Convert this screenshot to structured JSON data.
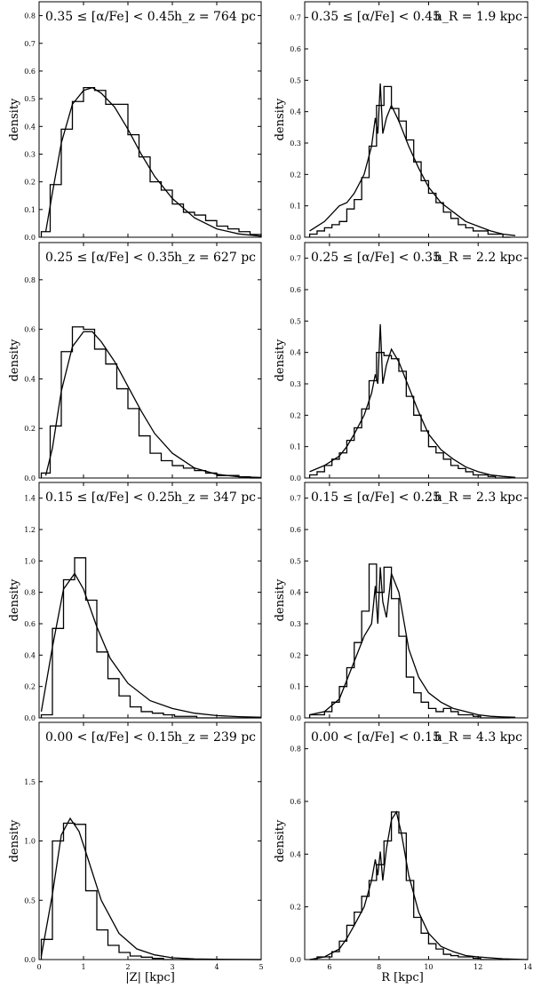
{
  "chart_data": [
    {
      "type": "histogram",
      "column": "left",
      "row": 0,
      "annotation_left": "0.35 ≤ [α/Fe] < 0.45",
      "annotation_right": "h_z = 764 pc",
      "ylabel": "density",
      "xlim": [
        0,
        5
      ],
      "ylim": [
        0,
        0.85
      ],
      "xticks": [
        0,
        1,
        2,
        3,
        4,
        5
      ],
      "yticks": [
        0.0,
        0.1,
        0.2,
        0.3,
        0.4,
        0.5,
        0.6,
        0.7,
        0.8
      ],
      "bin_edges": [
        0.05,
        0.25,
        0.5,
        0.75,
        1.0,
        1.25,
        1.5,
        1.75,
        2.0,
        2.25,
        2.5,
        2.75,
        3.0,
        3.25,
        3.5,
        3.75,
        4.0,
        4.25,
        4.5,
        4.75,
        5.0
      ],
      "hist_values": [
        0.02,
        0.19,
        0.39,
        0.49,
        0.54,
        0.53,
        0.48,
        0.48,
        0.37,
        0.29,
        0.2,
        0.17,
        0.12,
        0.09,
        0.08,
        0.06,
        0.04,
        0.03,
        0.02,
        0.01
      ],
      "fit_x": [
        0.15,
        0.3,
        0.5,
        0.75,
        1.0,
        1.2,
        1.4,
        1.7,
        2.0,
        2.3,
        2.6,
        3.0,
        3.5,
        4.0,
        4.5,
        5.0
      ],
      "fit_y": [
        0.02,
        0.16,
        0.34,
        0.48,
        0.53,
        0.54,
        0.52,
        0.47,
        0.39,
        0.3,
        0.22,
        0.14,
        0.07,
        0.03,
        0.012,
        0.004
      ]
    },
    {
      "type": "histogram",
      "column": "right",
      "row": 0,
      "annotation_left": "0.35 ≤ [α/Fe] < 0.45",
      "annotation_right": "h_R = 1.9 kpc",
      "ylabel": "density",
      "xlim": [
        5,
        14
      ],
      "ylim": [
        0,
        0.75
      ],
      "xticks": [
        6,
        8,
        10,
        12,
        14
      ],
      "yticks": [
        0.0,
        0.1,
        0.2,
        0.3,
        0.4,
        0.5,
        0.6,
        0.7
      ],
      "bin_edges": [
        5.2,
        5.5,
        5.8,
        6.1,
        6.4,
        6.7,
        7.0,
        7.3,
        7.6,
        7.9,
        8.2,
        8.5,
        8.8,
        9.1,
        9.4,
        9.7,
        10.0,
        10.3,
        10.6,
        10.9,
        11.2,
        11.5,
        11.8,
        12.1,
        12.4,
        12.7,
        13.0,
        13.3
      ],
      "hist_values": [
        0.01,
        0.02,
        0.03,
        0.04,
        0.05,
        0.09,
        0.12,
        0.19,
        0.29,
        0.42,
        0.48,
        0.41,
        0.37,
        0.31,
        0.24,
        0.18,
        0.14,
        0.11,
        0.08,
        0.06,
        0.04,
        0.03,
        0.02,
        0.02,
        0.01,
        0.01,
        0.0
      ],
      "fit_x": [
        5.2,
        5.8,
        6.4,
        6.7,
        7.0,
        7.4,
        7.7,
        7.85,
        7.95,
        8.05,
        8.15,
        8.3,
        8.5,
        8.8,
        9.2,
        9.6,
        10.0,
        10.5,
        11.0,
        11.5,
        12.0,
        12.5,
        13.0,
        13.5
      ],
      "fit_y": [
        0.02,
        0.05,
        0.1,
        0.11,
        0.14,
        0.2,
        0.29,
        0.38,
        0.33,
        0.49,
        0.33,
        0.38,
        0.42,
        0.37,
        0.29,
        0.22,
        0.16,
        0.11,
        0.08,
        0.05,
        0.035,
        0.02,
        0.01,
        0.005
      ]
    },
    {
      "type": "histogram",
      "column": "left",
      "row": 1,
      "annotation_left": "0.25 ≤ [α/Fe] < 0.35",
      "annotation_right": "h_z = 627 pc",
      "ylabel": "density",
      "xlim": [
        0,
        5
      ],
      "ylim": [
        0,
        0.95
      ],
      "xticks": [
        0,
        1,
        2,
        3,
        4,
        5
      ],
      "yticks": [
        0.0,
        0.2,
        0.4,
        0.6,
        0.8
      ],
      "bin_edges": [
        0.05,
        0.25,
        0.5,
        0.75,
        1.0,
        1.25,
        1.5,
        1.75,
        2.0,
        2.25,
        2.5,
        2.75,
        3.0,
        3.25,
        3.5,
        3.75,
        4.0,
        4.25,
        4.5,
        4.75,
        5.0
      ],
      "hist_values": [
        0.02,
        0.21,
        0.51,
        0.61,
        0.6,
        0.52,
        0.46,
        0.36,
        0.28,
        0.17,
        0.1,
        0.07,
        0.05,
        0.04,
        0.03,
        0.02,
        0.01,
        0.01,
        0.005,
        0.0
      ],
      "fit_x": [
        0.15,
        0.3,
        0.5,
        0.75,
        1.0,
        1.2,
        1.4,
        1.7,
        2.0,
        2.3,
        2.6,
        3.0,
        3.5,
        4.0,
        4.5,
        5.0
      ],
      "fit_y": [
        0.01,
        0.12,
        0.35,
        0.53,
        0.59,
        0.59,
        0.55,
        0.47,
        0.37,
        0.27,
        0.18,
        0.1,
        0.04,
        0.015,
        0.005,
        0.002
      ]
    },
    {
      "type": "histogram",
      "column": "right",
      "row": 1,
      "annotation_left": "0.25 ≤ [α/Fe] < 0.35",
      "annotation_right": "h_R = 2.2 kpc",
      "ylabel": "density",
      "xlim": [
        5,
        14
      ],
      "ylim": [
        0,
        0.75
      ],
      "xticks": [
        6,
        8,
        10,
        12,
        14
      ],
      "yticks": [
        0.0,
        0.1,
        0.2,
        0.3,
        0.4,
        0.5,
        0.6,
        0.7
      ],
      "bin_edges": [
        5.2,
        5.5,
        5.8,
        6.1,
        6.4,
        6.7,
        7.0,
        7.3,
        7.6,
        7.9,
        8.2,
        8.5,
        8.8,
        9.1,
        9.4,
        9.7,
        10.0,
        10.3,
        10.6,
        10.9,
        11.2,
        11.5,
        11.8,
        12.1,
        12.4,
        12.7,
        13.0,
        13.3
      ],
      "hist_values": [
        0.01,
        0.02,
        0.04,
        0.06,
        0.08,
        0.12,
        0.16,
        0.22,
        0.31,
        0.4,
        0.39,
        0.38,
        0.34,
        0.26,
        0.2,
        0.15,
        0.1,
        0.08,
        0.06,
        0.04,
        0.03,
        0.02,
        0.01,
        0.01,
        0.005,
        0.0,
        0.0
      ],
      "fit_x": [
        5.2,
        5.8,
        6.4,
        6.7,
        7.0,
        7.4,
        7.7,
        7.85,
        7.95,
        8.05,
        8.15,
        8.3,
        8.5,
        8.8,
        9.2,
        9.6,
        10.0,
        10.5,
        11.0,
        11.5,
        12.0,
        12.5,
        13.0,
        13.5
      ],
      "fit_y": [
        0.02,
        0.04,
        0.07,
        0.1,
        0.14,
        0.2,
        0.27,
        0.33,
        0.3,
        0.49,
        0.3,
        0.36,
        0.41,
        0.37,
        0.29,
        0.21,
        0.14,
        0.09,
        0.06,
        0.035,
        0.02,
        0.01,
        0.005,
        0.002
      ]
    },
    {
      "type": "histogram",
      "column": "left",
      "row": 2,
      "annotation_left": "0.15 ≤ [α/Fe] < 0.25",
      "annotation_right": "h_z = 347 pc",
      "ylabel": "density",
      "xlim": [
        0,
        5
      ],
      "ylim": [
        0,
        1.5
      ],
      "xticks": [
        0,
        1,
        2,
        3,
        4,
        5
      ],
      "yticks": [
        0.0,
        0.2,
        0.4,
        0.6,
        0.8,
        1.0,
        1.2,
        1.4
      ],
      "bin_edges": [
        0.05,
        0.3,
        0.55,
        0.8,
        1.05,
        1.3,
        1.55,
        1.8,
        2.05,
        2.3,
        2.55,
        2.8,
        3.05,
        3.3,
        3.55,
        3.8,
        4.05,
        4.3,
        4.55,
        4.8,
        5.0
      ],
      "hist_values": [
        0.02,
        0.57,
        0.88,
        1.02,
        0.75,
        0.42,
        0.25,
        0.14,
        0.07,
        0.04,
        0.03,
        0.02,
        0.01,
        0.01,
        0.0,
        0.0,
        0.0,
        0.0,
        0.0,
        0.0
      ],
      "fit_x": [
        0.05,
        0.3,
        0.55,
        0.8,
        1.0,
        1.3,
        1.6,
        2.0,
        2.5,
        3.0,
        3.5,
        4.0,
        4.5,
        5.0
      ],
      "fit_y": [
        0.04,
        0.45,
        0.82,
        0.92,
        0.82,
        0.58,
        0.38,
        0.22,
        0.11,
        0.06,
        0.03,
        0.015,
        0.008,
        0.004
      ]
    },
    {
      "type": "histogram",
      "column": "right",
      "row": 2,
      "annotation_left": "0.15 ≤ [α/Fe] < 0.25",
      "annotation_right": "h_R = 2.3 kpc",
      "ylabel": "density",
      "xlim": [
        5,
        14
      ],
      "ylim": [
        0,
        0.75
      ],
      "xticks": [
        6,
        8,
        10,
        12,
        14
      ],
      "yticks": [
        0.0,
        0.1,
        0.2,
        0.3,
        0.4,
        0.5,
        0.6,
        0.7
      ],
      "bin_edges": [
        5.2,
        5.5,
        5.8,
        6.1,
        6.4,
        6.7,
        7.0,
        7.3,
        7.6,
        7.9,
        8.2,
        8.5,
        8.8,
        9.1,
        9.4,
        9.7,
        10.0,
        10.3,
        10.6,
        10.9,
        11.2,
        11.5,
        11.8,
        12.1,
        12.4,
        12.7,
        13.0,
        13.3
      ],
      "hist_values": [
        0.01,
        0.01,
        0.02,
        0.05,
        0.1,
        0.16,
        0.24,
        0.34,
        0.49,
        0.4,
        0.48,
        0.38,
        0.26,
        0.13,
        0.08,
        0.05,
        0.03,
        0.02,
        0.03,
        0.02,
        0.01,
        0.01,
        0.005,
        0.0,
        0.0,
        0.0,
        0.0
      ],
      "fit_x": [
        5.2,
        5.8,
        6.4,
        6.7,
        7.0,
        7.4,
        7.7,
        7.85,
        7.95,
        8.05,
        8.15,
        8.3,
        8.5,
        8.8,
        9.2,
        9.6,
        10.0,
        10.5,
        11.0,
        11.5,
        12.0,
        12.5,
        13.0,
        13.5
      ],
      "fit_y": [
        0.01,
        0.02,
        0.06,
        0.12,
        0.18,
        0.26,
        0.3,
        0.42,
        0.3,
        0.48,
        0.37,
        0.32,
        0.46,
        0.4,
        0.22,
        0.13,
        0.08,
        0.05,
        0.03,
        0.02,
        0.01,
        0.005,
        0.003,
        0.002
      ]
    },
    {
      "type": "histogram",
      "column": "left",
      "row": 3,
      "annotation_left": "0.00 < [α/Fe] < 0.15",
      "annotation_right": "h_z = 239 pc",
      "ylabel": "density",
      "xlim": [
        0,
        5
      ],
      "ylim": [
        0,
        2.0
      ],
      "xticks": [
        0,
        1,
        2,
        3,
        4,
        5
      ],
      "yticks": [
        0.0,
        0.5,
        1.0,
        1.5
      ],
      "bin_edges": [
        0.05,
        0.3,
        0.55,
        0.8,
        1.05,
        1.3,
        1.55,
        1.8,
        2.05,
        2.3,
        2.55,
        2.8,
        3.05,
        3.3,
        3.55,
        3.8,
        4.05,
        4.3,
        4.55,
        4.8,
        5.0
      ],
      "hist_values": [
        0.17,
        1.0,
        1.15,
        1.14,
        0.58,
        0.25,
        0.12,
        0.06,
        0.03,
        0.02,
        0.01,
        0.0,
        0.0,
        0.0,
        0.0,
        0.0,
        0.0,
        0.0,
        0.0,
        0.0
      ],
      "fit_x": [
        0.05,
        0.3,
        0.5,
        0.7,
        0.9,
        1.1,
        1.4,
        1.8,
        2.2,
        2.6,
        3.0,
        3.5,
        4.0,
        5.0
      ],
      "fit_y": [
        0.03,
        0.55,
        1.05,
        1.19,
        1.08,
        0.85,
        0.5,
        0.22,
        0.09,
        0.04,
        0.015,
        0.005,
        0.002,
        0.0
      ]
    },
    {
      "type": "histogram",
      "column": "right",
      "row": 3,
      "annotation_left": "0.00 < [α/Fe] < 0.15",
      "annotation_right": "h_R = 4.3 kpc",
      "ylabel": "density",
      "xlim": [
        5,
        14
      ],
      "ylim": [
        0,
        0.9
      ],
      "xticks": [
        6,
        8,
        10,
        12,
        14
      ],
      "yticks": [
        0.0,
        0.2,
        0.4,
        0.6,
        0.8
      ],
      "bin_edges": [
        5.2,
        5.5,
        5.8,
        6.1,
        6.4,
        6.7,
        7.0,
        7.3,
        7.6,
        7.9,
        8.2,
        8.5,
        8.8,
        9.1,
        9.4,
        9.7,
        10.0,
        10.3,
        10.6,
        10.9,
        11.2,
        11.5,
        11.8,
        12.1,
        12.4,
        12.7,
        13.0,
        13.3
      ],
      "hist_values": [
        0.0,
        0.01,
        0.01,
        0.03,
        0.07,
        0.13,
        0.18,
        0.24,
        0.3,
        0.36,
        0.45,
        0.56,
        0.48,
        0.3,
        0.16,
        0.1,
        0.06,
        0.04,
        0.02,
        0.015,
        0.01,
        0.01,
        0.005,
        0.0,
        0.0,
        0.0,
        0.0
      ],
      "fit_x": [
        5.2,
        5.8,
        6.4,
        6.7,
        7.0,
        7.4,
        7.7,
        7.85,
        7.95,
        8.05,
        8.15,
        8.3,
        8.5,
        8.7,
        8.9,
        9.2,
        9.6,
        10.0,
        10.5,
        11.0,
        11.5,
        12.0,
        13.0,
        14.0
      ],
      "fit_y": [
        0.0,
        0.01,
        0.04,
        0.08,
        0.13,
        0.2,
        0.3,
        0.38,
        0.32,
        0.41,
        0.3,
        0.42,
        0.53,
        0.56,
        0.48,
        0.32,
        0.18,
        0.1,
        0.05,
        0.03,
        0.015,
        0.01,
        0.003,
        0.0
      ]
    }
  ],
  "axes_labels": {
    "x_left": "|Z| [kpc]",
    "x_right": "R [kpc]",
    "y": "density"
  }
}
